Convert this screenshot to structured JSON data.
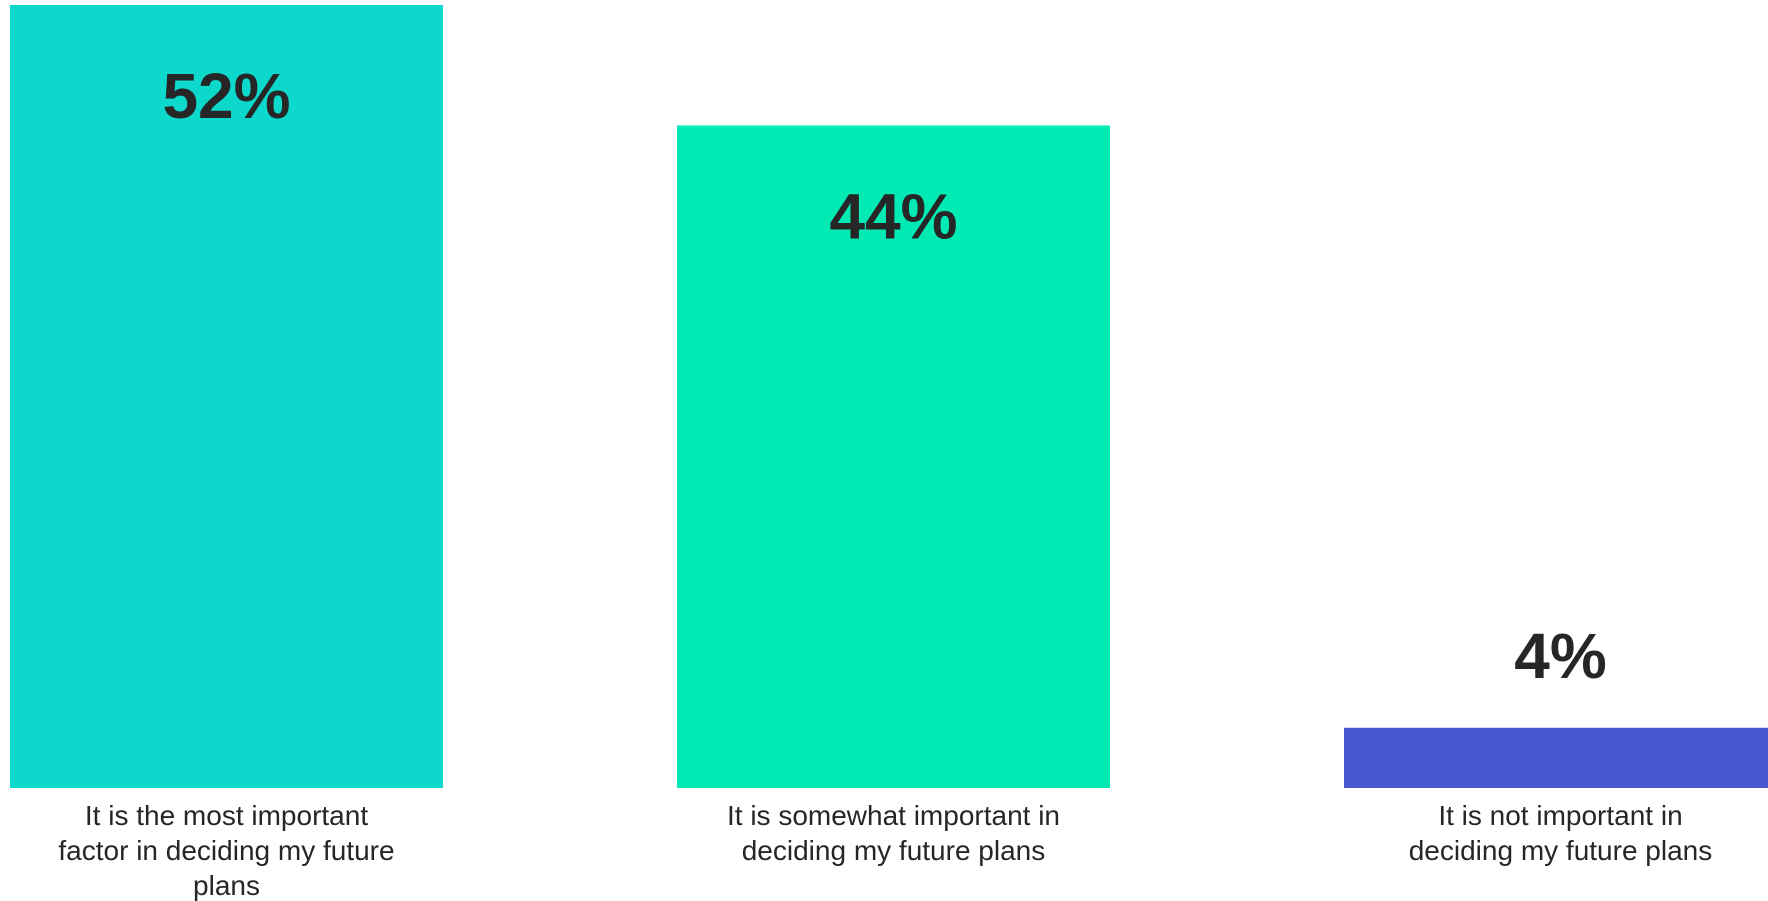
{
  "chart_data": {
    "type": "bar",
    "categories": [
      [
        "It is the most important",
        "factor in deciding my future",
        "plans"
      ],
      [
        "It is somewhat important in",
        "deciding my future plans"
      ],
      [
        "It is not important in",
        "deciding my future plans"
      ]
    ],
    "values": [
      52,
      44,
      4
    ],
    "value_labels": [
      "52%",
      "44%",
      "4%"
    ],
    "colors": [
      "#0DD8CC",
      "#02EAB3",
      "#4758CE"
    ],
    "ylim": [
      0,
      52
    ],
    "grid": false,
    "legend": "none"
  }
}
